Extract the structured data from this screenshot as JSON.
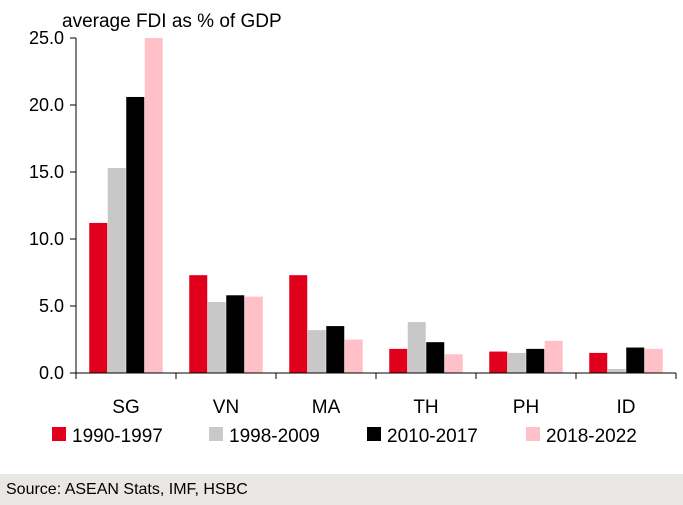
{
  "chart_data": {
    "type": "bar",
    "ylabel": "average FDI as % of GDP",
    "categories": [
      "SG",
      "VN",
      "MA",
      "TH",
      "PH",
      "ID"
    ],
    "series": [
      {
        "name": "1990-1997",
        "color": "#e0001b",
        "values": [
          11.2,
          7.3,
          7.3,
          1.8,
          1.6,
          1.5
        ]
      },
      {
        "name": "1998-2009",
        "color": "#c8c8c8",
        "values": [
          15.3,
          5.3,
          3.2,
          3.8,
          1.5,
          0.3
        ]
      },
      {
        "name": "2010-2017",
        "color": "#000000",
        "values": [
          20.6,
          5.8,
          3.5,
          2.3,
          1.8,
          1.9
        ]
      },
      {
        "name": "2018-2022",
        "color": "#ffc0c8",
        "values": [
          25.0,
          5.7,
          2.5,
          1.4,
          2.4,
          1.8
        ]
      }
    ],
    "ylim": [
      0,
      25
    ],
    "yticks": [
      "0.0",
      "5.0",
      "10.0",
      "15.0",
      "20.0",
      "25.0"
    ],
    "grid": false,
    "legend_position": "bottom"
  },
  "source": "Source: ASEAN Stats, IMF, HSBC"
}
